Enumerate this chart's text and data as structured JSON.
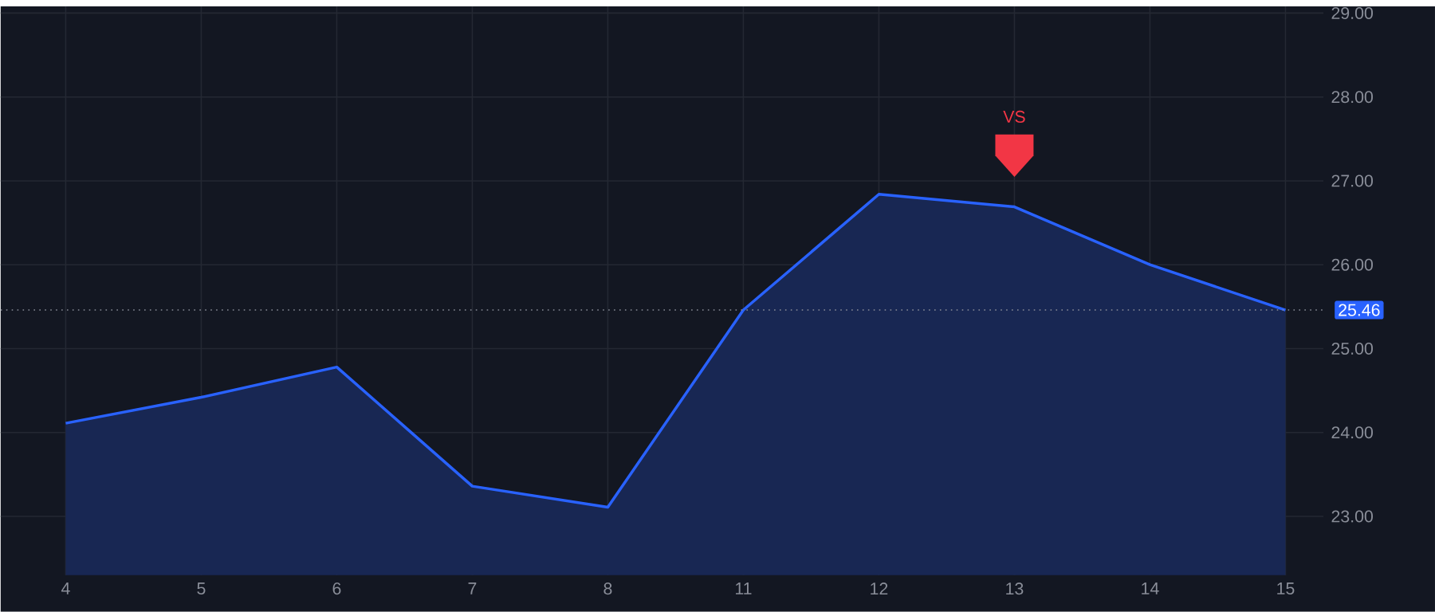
{
  "chart_data": {
    "type": "area",
    "categories": [
      "4",
      "5",
      "6",
      "7",
      "8",
      "11",
      "12",
      "13",
      "14",
      "15"
    ],
    "series": [
      {
        "color": "#2962ff",
        "values": [
          24.11,
          24.42,
          24.78,
          23.36,
          23.11,
          25.46,
          26.84,
          26.69,
          26.0,
          25.46
        ]
      },
      {
        "type": "scatter",
        "color": "#f23645",
        "x": [
          "13"
        ],
        "values": [
          27.3
        ]
      }
    ],
    "ylim": [
      22.3,
      29.08
    ],
    "yticks": [
      {
        "value": 23,
        "label": "23.00"
      },
      {
        "value": 24,
        "label": "24.00"
      },
      {
        "value": 25,
        "label": "25.00"
      },
      {
        "value": 26,
        "label": "26.00"
      },
      {
        "value": 27,
        "label": "27.00"
      },
      {
        "value": 28,
        "label": "28.00"
      },
      {
        "value": 29,
        "label": "29.00"
      }
    ],
    "grid": true,
    "ref_lines": [
      {
        "axis": "y",
        "value": 25.46,
        "label": "25.46",
        "color": "#8a8e99",
        "line_style": "dotted"
      }
    ],
    "annotations": [
      "VS"
    ]
  }
}
